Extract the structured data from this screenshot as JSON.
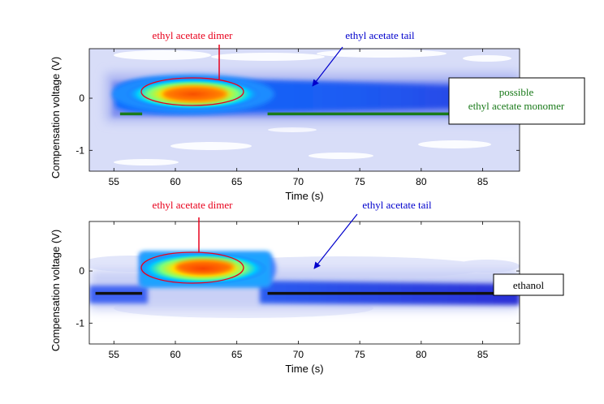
{
  "chart_data": [
    {
      "type": "heatmap",
      "xlabel": "Time (s)",
      "ylabel": "Compensation voltage (V)",
      "xlim": [
        53,
        88
      ],
      "ylim": [
        -1.4,
        0.95
      ],
      "xticks": [
        55,
        60,
        65,
        70,
        75,
        80,
        85
      ],
      "yticks": [
        0,
        -1
      ],
      "annotations": [
        {
          "text": "ethyl acetate dimer",
          "color": "#e8001c",
          "x": 61.5,
          "y": 0.08
        },
        {
          "text": "ethyl acetate tail",
          "color": "#0000cc",
          "x": 70.5,
          "y": 0.15
        },
        {
          "lines": [
            "possible",
            "ethyl acetate monomer"
          ],
          "color": "#1a7a1a",
          "boxed": true
        }
      ],
      "features": [
        {
          "kind": "blob",
          "label": "dimer",
          "x": 61.5,
          "y": 0.08
        },
        {
          "kind": "band",
          "label": "tail",
          "x": [
            56,
            88
          ],
          "y": 0.1
        },
        {
          "kind": "line",
          "label": "monomer",
          "color": "#1a7a1a",
          "segments": [
            [
              55.5,
              57.3,
              -0.3
            ],
            [
              67.5,
              88,
              -0.3
            ]
          ]
        }
      ]
    },
    {
      "type": "heatmap",
      "xlabel": "Time (s)",
      "ylabel": "Compensation voltage (V)",
      "xlim": [
        53,
        88
      ],
      "ylim": [
        -1.4,
        0.95
      ],
      "xticks": [
        55,
        60,
        65,
        70,
        75,
        80,
        85
      ],
      "yticks": [
        0,
        -1
      ],
      "annotations": [
        {
          "text": "ethyl acetate dimer",
          "color": "#e8001c",
          "x": 61.5,
          "y": 0.08
        },
        {
          "text": "ethyl acetate tail",
          "color": "#0000cc",
          "x": 70.5,
          "y": 0.0
        },
        {
          "lines": [
            "ethanol"
          ],
          "color": "#000000",
          "boxed": true
        }
      ],
      "features": [
        {
          "kind": "blob",
          "label": "dimer",
          "x": 61.5,
          "y": 0.08
        },
        {
          "kind": "band",
          "label": "tail",
          "x": [
            57,
            88
          ],
          "y": -0.3
        },
        {
          "kind": "line",
          "label": "ethanol",
          "color": "#111111",
          "segments": [
            [
              53.5,
              57.3,
              -0.43
            ],
            [
              67.5,
              88,
              -0.43
            ]
          ]
        }
      ]
    }
  ]
}
